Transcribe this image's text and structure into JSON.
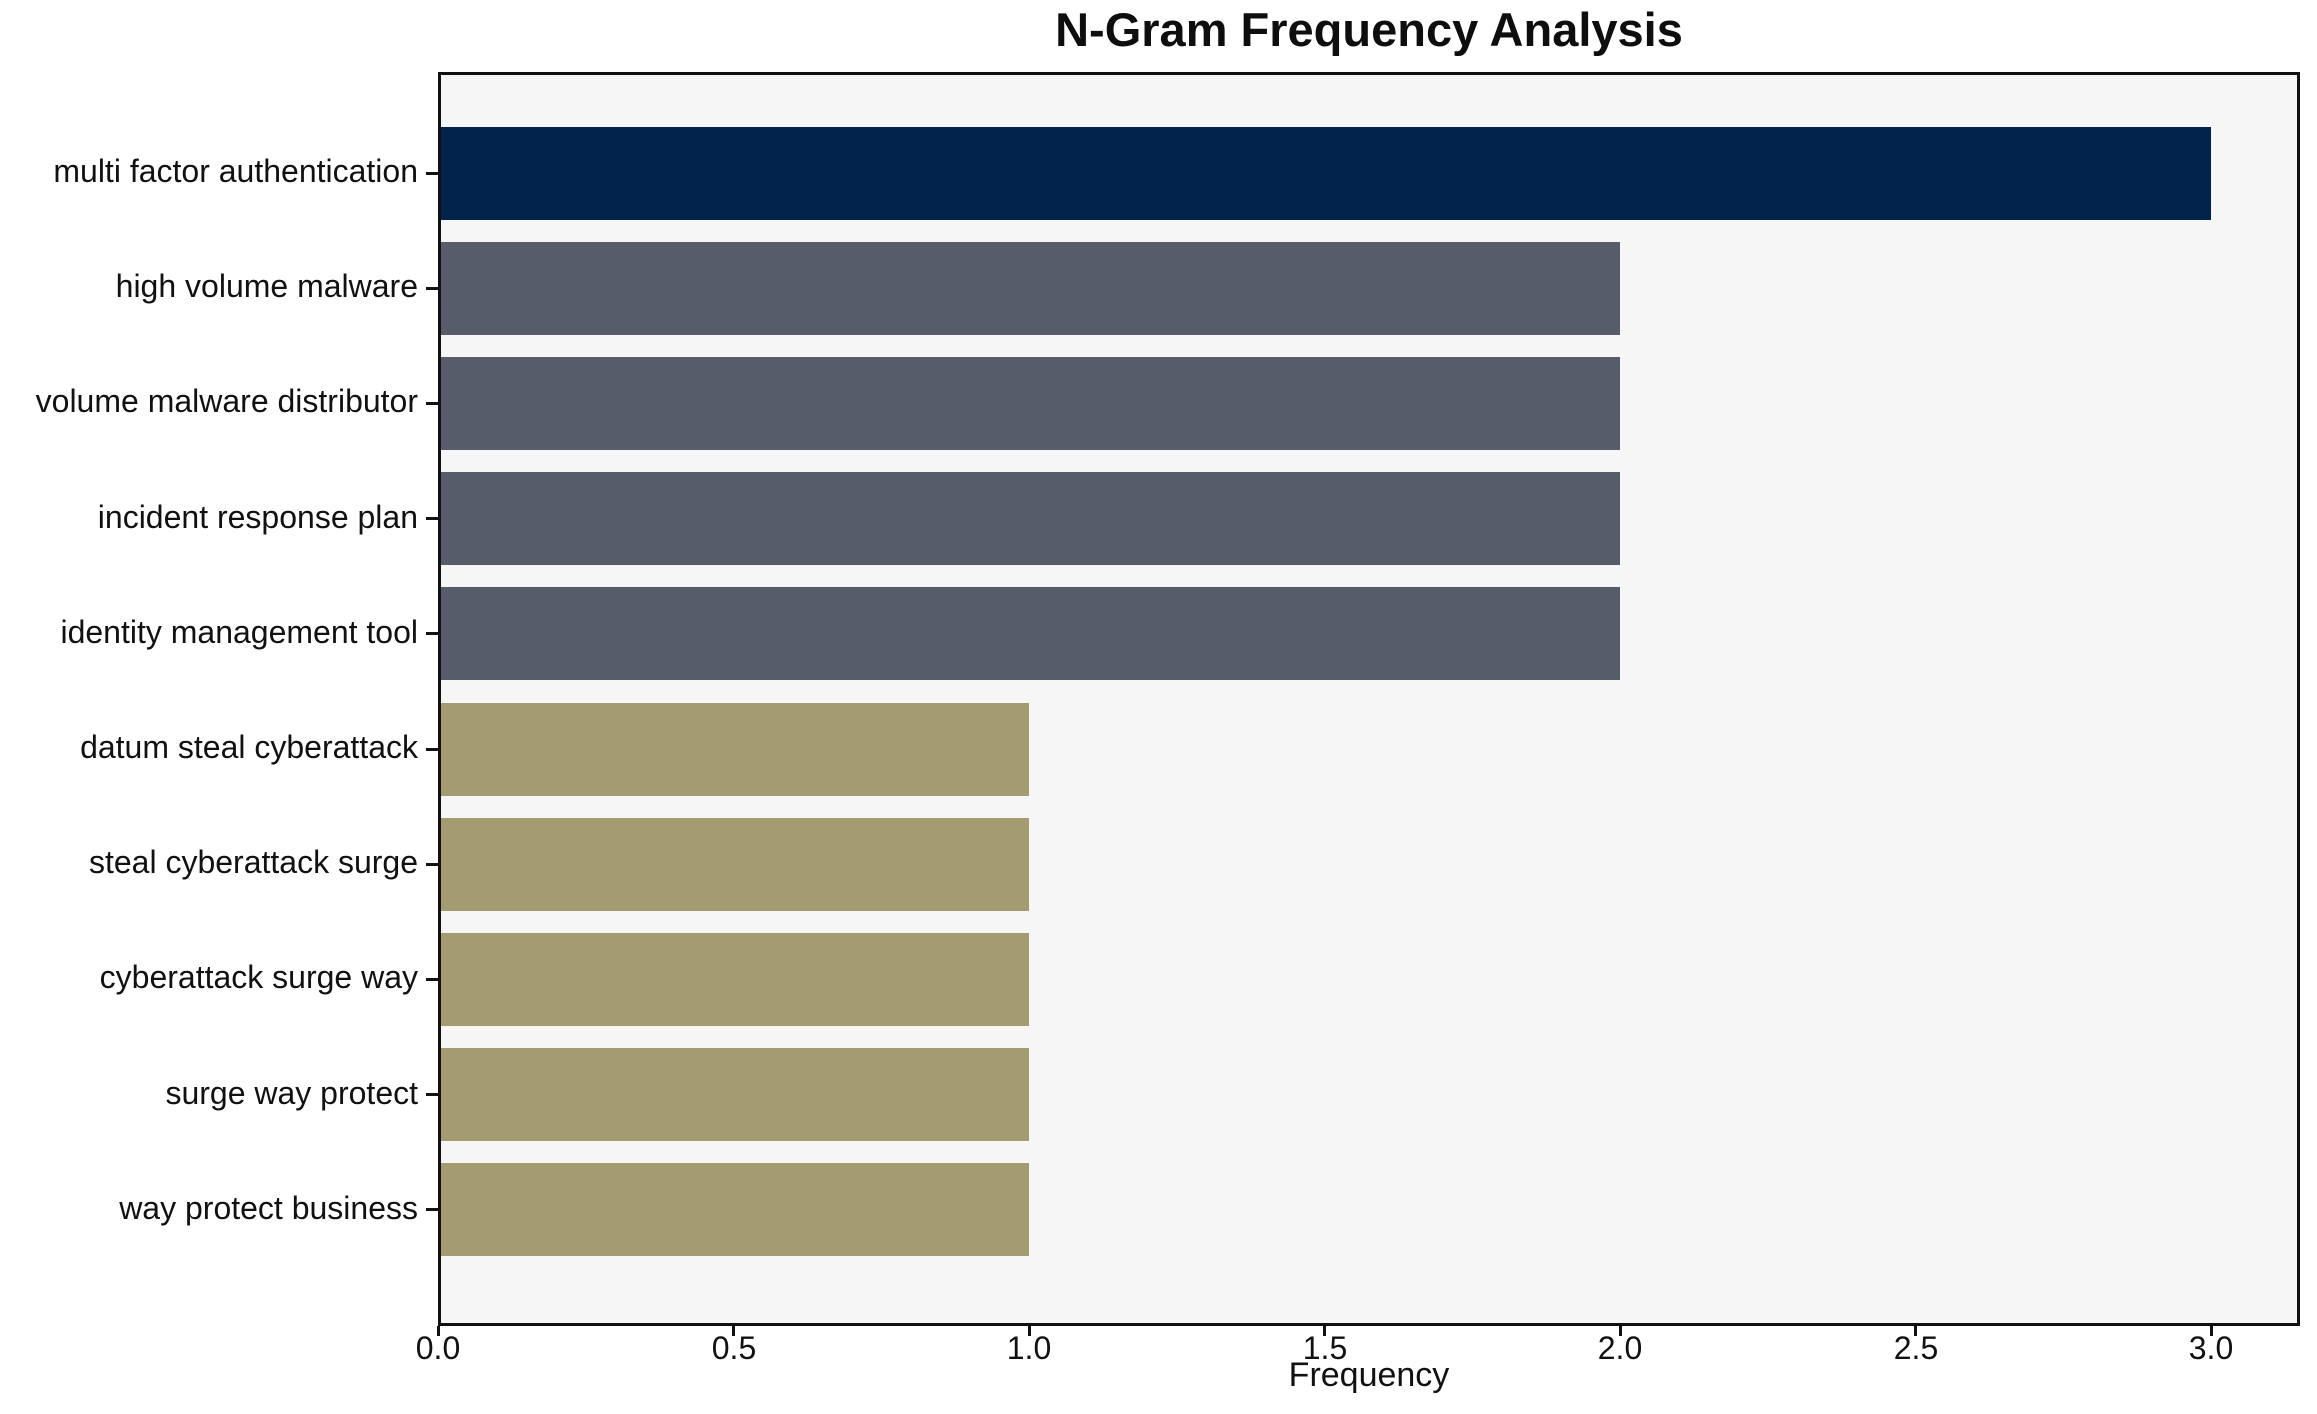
{
  "chart_data": {
    "type": "bar",
    "orientation": "horizontal",
    "title": "N-Gram Frequency Analysis",
    "xlabel": "Frequency",
    "ylabel": "",
    "categories": [
      "multi factor authentication",
      "high volume malware",
      "volume malware distributor",
      "incident response plan",
      "identity management tool",
      "datum steal cyberattack",
      "steal cyberattack surge",
      "cyberattack surge way",
      "surge way protect",
      "way protect business"
    ],
    "values": [
      3,
      2,
      2,
      2,
      2,
      1,
      1,
      1,
      1,
      1
    ],
    "bar_colors": [
      "#02234C",
      "#565C6A",
      "#565C6A",
      "#565C6A",
      "#565C6A",
      "#A49B70",
      "#A49B70",
      "#A49B70",
      "#A49B70",
      "#A49B70"
    ],
    "color_by_value": {
      "3": "#02234C",
      "2": "#565C6A",
      "1": "#A49B70"
    },
    "xlim": [
      0,
      3.15
    ],
    "xticks": [
      0,
      0.5,
      1.0,
      1.5,
      2.0,
      2.5,
      3.0
    ],
    "xtick_labels": [
      "0.0",
      "0.5",
      "1.0",
      "1.5",
      "2.0",
      "2.5",
      "3.0"
    ],
    "grid": false,
    "legend": "none",
    "plot_background": "#F6F6F7",
    "figure_background": "#FFFFFF",
    "axis_color": "#111111"
  }
}
